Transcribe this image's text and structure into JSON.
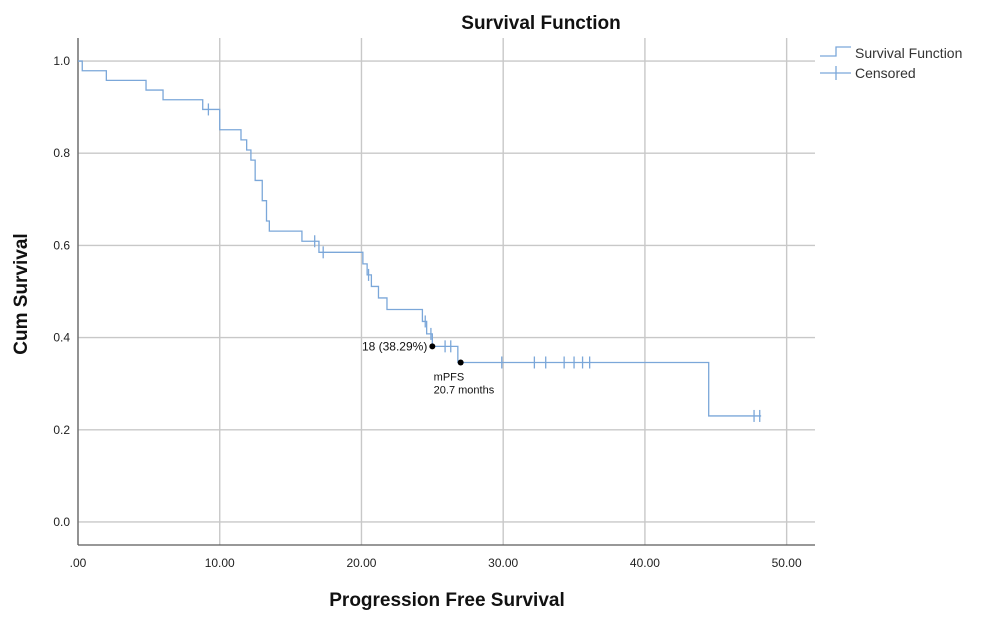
{
  "chart_data": {
    "type": "line",
    "title": "Survival Function",
    "xlabel": "Progression Free Survival",
    "ylabel": "Cum Survival",
    "xlim": [
      0,
      52
    ],
    "ylim": [
      -0.05,
      1.05
    ],
    "x_ticks": [
      0,
      10,
      20,
      30,
      40,
      50
    ],
    "x_tick_labels": [
      ".00",
      "10.00",
      "20.00",
      "30.00",
      "40.00",
      "50.00"
    ],
    "y_ticks": [
      0.0,
      0.2,
      0.4,
      0.6,
      0.8,
      1.0
    ],
    "y_tick_labels": [
      "0.0",
      "0.2",
      "0.4",
      "0.6",
      "0.8",
      "1.0"
    ],
    "grid": true,
    "legend_position": "top-right",
    "legend": [
      "Survival Function",
      "Censored"
    ],
    "series": [
      {
        "name": "Survival Function",
        "step": [
          [
            0,
            1.0
          ],
          [
            0.3,
            0.979
          ],
          [
            2.0,
            0.958
          ],
          [
            4.8,
            0.937
          ],
          [
            6.0,
            0.916
          ],
          [
            8.8,
            0.895
          ],
          [
            10.0,
            0.851
          ],
          [
            11.5,
            0.829
          ],
          [
            11.9,
            0.807
          ],
          [
            12.2,
            0.785
          ],
          [
            12.5,
            0.741
          ],
          [
            13.0,
            0.697
          ],
          [
            13.3,
            0.653
          ],
          [
            13.5,
            0.631
          ],
          [
            15.8,
            0.609
          ],
          [
            17.0,
            0.585
          ],
          [
            20.1,
            0.56
          ],
          [
            20.4,
            0.536
          ],
          [
            20.7,
            0.511
          ],
          [
            21.2,
            0.486
          ],
          [
            21.8,
            0.461
          ],
          [
            24.3,
            0.435
          ],
          [
            24.6,
            0.408
          ],
          [
            25.0,
            0.381
          ],
          [
            26.8,
            0.346
          ],
          [
            44.5,
            0.23
          ],
          [
            48.2,
            0.23
          ]
        ]
      },
      {
        "name": "Censored",
        "points": [
          [
            9.2,
            0.895
          ],
          [
            16.7,
            0.609
          ],
          [
            17.3,
            0.585
          ],
          [
            20.5,
            0.536
          ],
          [
            24.5,
            0.435
          ],
          [
            24.9,
            0.408
          ],
          [
            25.9,
            0.381
          ],
          [
            26.3,
            0.381
          ],
          [
            29.9,
            0.346
          ],
          [
            32.2,
            0.346
          ],
          [
            33.0,
            0.346
          ],
          [
            34.3,
            0.346
          ],
          [
            35.0,
            0.346
          ],
          [
            35.6,
            0.346
          ],
          [
            36.1,
            0.346
          ],
          [
            47.7,
            0.23
          ],
          [
            48.1,
            0.23
          ]
        ]
      }
    ],
    "annotations": [
      {
        "x": 25.0,
        "y": 0.381,
        "label": "18 (38.29%)",
        "anchor": "left"
      },
      {
        "x": 27.0,
        "y": 0.346,
        "lines": [
          "mPFS",
          "20.7 months"
        ],
        "anchor": "below"
      }
    ],
    "colors": {
      "line": "#7ba7d9",
      "grid": "#c8c8c8",
      "frame": "#5a5a5a",
      "marker": "#000000"
    }
  }
}
